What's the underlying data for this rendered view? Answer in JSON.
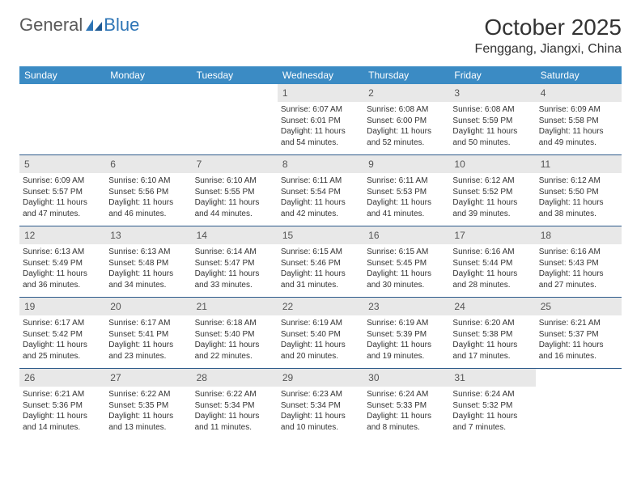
{
  "brand": {
    "part1": "General",
    "part2": "Blue"
  },
  "title": "October 2025",
  "location": "Fenggang, Jiangxi, China",
  "colors": {
    "header_bg": "#3b8bc4",
    "header_text": "#ffffff",
    "daynum_bg": "#e8e8e8",
    "week_border": "#2e5b8a",
    "brand_blue": "#2e75b6"
  },
  "day_headers": [
    "Sunday",
    "Monday",
    "Tuesday",
    "Wednesday",
    "Thursday",
    "Friday",
    "Saturday"
  ],
  "weeks": [
    [
      {
        "n": "",
        "sr": "",
        "ss": "",
        "dl": ""
      },
      {
        "n": "",
        "sr": "",
        "ss": "",
        "dl": ""
      },
      {
        "n": "",
        "sr": "",
        "ss": "",
        "dl": ""
      },
      {
        "n": "1",
        "sr": "Sunrise: 6:07 AM",
        "ss": "Sunset: 6:01 PM",
        "dl": "Daylight: 11 hours and 54 minutes."
      },
      {
        "n": "2",
        "sr": "Sunrise: 6:08 AM",
        "ss": "Sunset: 6:00 PM",
        "dl": "Daylight: 11 hours and 52 minutes."
      },
      {
        "n": "3",
        "sr": "Sunrise: 6:08 AM",
        "ss": "Sunset: 5:59 PM",
        "dl": "Daylight: 11 hours and 50 minutes."
      },
      {
        "n": "4",
        "sr": "Sunrise: 6:09 AM",
        "ss": "Sunset: 5:58 PM",
        "dl": "Daylight: 11 hours and 49 minutes."
      }
    ],
    [
      {
        "n": "5",
        "sr": "Sunrise: 6:09 AM",
        "ss": "Sunset: 5:57 PM",
        "dl": "Daylight: 11 hours and 47 minutes."
      },
      {
        "n": "6",
        "sr": "Sunrise: 6:10 AM",
        "ss": "Sunset: 5:56 PM",
        "dl": "Daylight: 11 hours and 46 minutes."
      },
      {
        "n": "7",
        "sr": "Sunrise: 6:10 AM",
        "ss": "Sunset: 5:55 PM",
        "dl": "Daylight: 11 hours and 44 minutes."
      },
      {
        "n": "8",
        "sr": "Sunrise: 6:11 AM",
        "ss": "Sunset: 5:54 PM",
        "dl": "Daylight: 11 hours and 42 minutes."
      },
      {
        "n": "9",
        "sr": "Sunrise: 6:11 AM",
        "ss": "Sunset: 5:53 PM",
        "dl": "Daylight: 11 hours and 41 minutes."
      },
      {
        "n": "10",
        "sr": "Sunrise: 6:12 AM",
        "ss": "Sunset: 5:52 PM",
        "dl": "Daylight: 11 hours and 39 minutes."
      },
      {
        "n": "11",
        "sr": "Sunrise: 6:12 AM",
        "ss": "Sunset: 5:50 PM",
        "dl": "Daylight: 11 hours and 38 minutes."
      }
    ],
    [
      {
        "n": "12",
        "sr": "Sunrise: 6:13 AM",
        "ss": "Sunset: 5:49 PM",
        "dl": "Daylight: 11 hours and 36 minutes."
      },
      {
        "n": "13",
        "sr": "Sunrise: 6:13 AM",
        "ss": "Sunset: 5:48 PM",
        "dl": "Daylight: 11 hours and 34 minutes."
      },
      {
        "n": "14",
        "sr": "Sunrise: 6:14 AM",
        "ss": "Sunset: 5:47 PM",
        "dl": "Daylight: 11 hours and 33 minutes."
      },
      {
        "n": "15",
        "sr": "Sunrise: 6:15 AM",
        "ss": "Sunset: 5:46 PM",
        "dl": "Daylight: 11 hours and 31 minutes."
      },
      {
        "n": "16",
        "sr": "Sunrise: 6:15 AM",
        "ss": "Sunset: 5:45 PM",
        "dl": "Daylight: 11 hours and 30 minutes."
      },
      {
        "n": "17",
        "sr": "Sunrise: 6:16 AM",
        "ss": "Sunset: 5:44 PM",
        "dl": "Daylight: 11 hours and 28 minutes."
      },
      {
        "n": "18",
        "sr": "Sunrise: 6:16 AM",
        "ss": "Sunset: 5:43 PM",
        "dl": "Daylight: 11 hours and 27 minutes."
      }
    ],
    [
      {
        "n": "19",
        "sr": "Sunrise: 6:17 AM",
        "ss": "Sunset: 5:42 PM",
        "dl": "Daylight: 11 hours and 25 minutes."
      },
      {
        "n": "20",
        "sr": "Sunrise: 6:17 AM",
        "ss": "Sunset: 5:41 PM",
        "dl": "Daylight: 11 hours and 23 minutes."
      },
      {
        "n": "21",
        "sr": "Sunrise: 6:18 AM",
        "ss": "Sunset: 5:40 PM",
        "dl": "Daylight: 11 hours and 22 minutes."
      },
      {
        "n": "22",
        "sr": "Sunrise: 6:19 AM",
        "ss": "Sunset: 5:40 PM",
        "dl": "Daylight: 11 hours and 20 minutes."
      },
      {
        "n": "23",
        "sr": "Sunrise: 6:19 AM",
        "ss": "Sunset: 5:39 PM",
        "dl": "Daylight: 11 hours and 19 minutes."
      },
      {
        "n": "24",
        "sr": "Sunrise: 6:20 AM",
        "ss": "Sunset: 5:38 PM",
        "dl": "Daylight: 11 hours and 17 minutes."
      },
      {
        "n": "25",
        "sr": "Sunrise: 6:21 AM",
        "ss": "Sunset: 5:37 PM",
        "dl": "Daylight: 11 hours and 16 minutes."
      }
    ],
    [
      {
        "n": "26",
        "sr": "Sunrise: 6:21 AM",
        "ss": "Sunset: 5:36 PM",
        "dl": "Daylight: 11 hours and 14 minutes."
      },
      {
        "n": "27",
        "sr": "Sunrise: 6:22 AM",
        "ss": "Sunset: 5:35 PM",
        "dl": "Daylight: 11 hours and 13 minutes."
      },
      {
        "n": "28",
        "sr": "Sunrise: 6:22 AM",
        "ss": "Sunset: 5:34 PM",
        "dl": "Daylight: 11 hours and 11 minutes."
      },
      {
        "n": "29",
        "sr": "Sunrise: 6:23 AM",
        "ss": "Sunset: 5:34 PM",
        "dl": "Daylight: 11 hours and 10 minutes."
      },
      {
        "n": "30",
        "sr": "Sunrise: 6:24 AM",
        "ss": "Sunset: 5:33 PM",
        "dl": "Daylight: 11 hours and 8 minutes."
      },
      {
        "n": "31",
        "sr": "Sunrise: 6:24 AM",
        "ss": "Sunset: 5:32 PM",
        "dl": "Daylight: 11 hours and 7 minutes."
      },
      {
        "n": "",
        "sr": "",
        "ss": "",
        "dl": ""
      }
    ]
  ]
}
